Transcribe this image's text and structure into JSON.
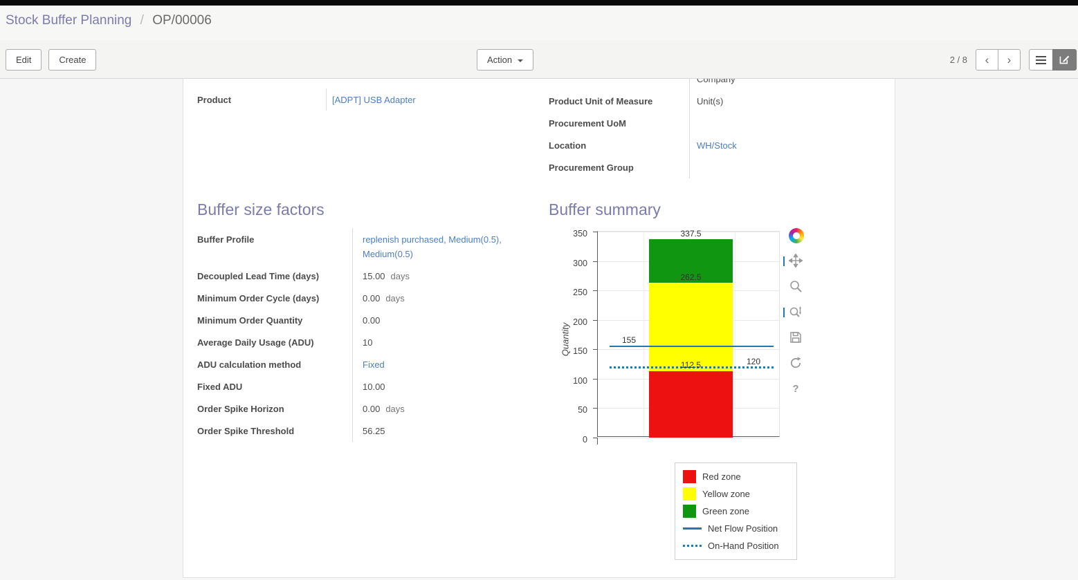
{
  "breadcrumb": {
    "primary": "Stock Buffer Planning",
    "separator": "/",
    "current": "OP/00006"
  },
  "control_panel": {
    "edit_label": "Edit",
    "create_label": "Create",
    "action_label": "Action",
    "pager_value": "2 / 8",
    "prev_icon": "‹",
    "next_icon": "›"
  },
  "form": {
    "top_left": {
      "fields": [
        {
          "label": "Product",
          "value": "[ADPT] USB Adapter",
          "link": true
        }
      ]
    },
    "top_right": {
      "fields": [
        {
          "label": "",
          "value": "Company",
          "clipped": true
        },
        {
          "label": "Product Unit of Measure",
          "value": "Unit(s)"
        },
        {
          "label": "Procurement UoM",
          "value": ""
        },
        {
          "label": "Location",
          "value": "WH/Stock",
          "link": true
        },
        {
          "label": "Procurement Group",
          "value": ""
        }
      ]
    },
    "buffer_factors": {
      "title": "Buffer size factors",
      "rows": [
        {
          "label": "Buffer Profile",
          "value": "replenish purchased, Medium(0.5), Medium(0.5)",
          "link": true
        },
        {
          "label": "Decoupled Lead Time (days)",
          "value": "15.00",
          "suffix": "days"
        },
        {
          "label": "Minimum Order Cycle (days)",
          "value": "0.00",
          "suffix": "days"
        },
        {
          "label": "Minimum Order Quantity",
          "value": "0.00"
        },
        {
          "label": "Average Daily Usage (ADU)",
          "value": "10"
        },
        {
          "label": "ADU calculation method",
          "value": "Fixed",
          "link": true
        },
        {
          "label": "Fixed ADU",
          "value": "10.00"
        },
        {
          "label": "Order Spike Horizon",
          "value": "0.00",
          "suffix": "days"
        },
        {
          "label": "Order Spike Threshold",
          "value": "56.25"
        }
      ]
    },
    "buffer_summary": {
      "title": "Buffer summary"
    }
  },
  "chart_data": {
    "type": "bar",
    "title": "Buffer summary",
    "ylabel": "Quantity",
    "ylim": [
      0,
      350
    ],
    "yticks": [
      0,
      50,
      100,
      150,
      200,
      250,
      300,
      350
    ],
    "grid": true,
    "legend_position": "bottom-right",
    "zones": [
      {
        "name": "Red zone",
        "from": 0,
        "to": 112.5,
        "color": "#ee1111"
      },
      {
        "name": "Yellow zone",
        "from": 112.5,
        "to": 262.5,
        "color": "#ffff00"
      },
      {
        "name": "Green zone",
        "from": 262.5,
        "to": 337.5,
        "color": "#119611"
      }
    ],
    "lines": [
      {
        "name": "Net Flow Position",
        "value": 155,
        "style": "solid",
        "color": "#1f77b4"
      },
      {
        "name": "On-Hand Position",
        "value": 120,
        "style": "dotted",
        "color": "#1f77b4"
      }
    ],
    "annotations": [
      {
        "text": "337.5",
        "value": 337.5,
        "x": "bar-center",
        "dy": -8
      },
      {
        "text": "262.5",
        "value": 262.5,
        "x": "bar-center",
        "dy": -9
      },
      {
        "text": "112.5",
        "value": 112.5,
        "x": "bar-center",
        "dy": -9
      },
      {
        "text": "155",
        "value": 155,
        "x": "left",
        "dy": -9
      },
      {
        "text": "120",
        "value": 120,
        "x": "right",
        "dy": -8
      }
    ],
    "legend": [
      {
        "label": "Red zone",
        "swatch": "fill",
        "color": "#ee1111"
      },
      {
        "label": "Yellow zone",
        "swatch": "fill",
        "color": "#ffff00"
      },
      {
        "label": "Green zone",
        "swatch": "fill",
        "color": "#119611"
      },
      {
        "label": "Net Flow Position",
        "swatch": "line",
        "color": "#1f77b4"
      },
      {
        "label": "On-Hand Position",
        "swatch": "dotted",
        "color": "#1f77b4"
      }
    ],
    "toolbar": [
      {
        "name": "bokeh-logo"
      },
      {
        "name": "pan",
        "active": true
      },
      {
        "name": "box-zoom"
      },
      {
        "name": "wheel-zoom",
        "active": true
      },
      {
        "name": "save"
      },
      {
        "name": "reset"
      },
      {
        "name": "help"
      }
    ]
  }
}
